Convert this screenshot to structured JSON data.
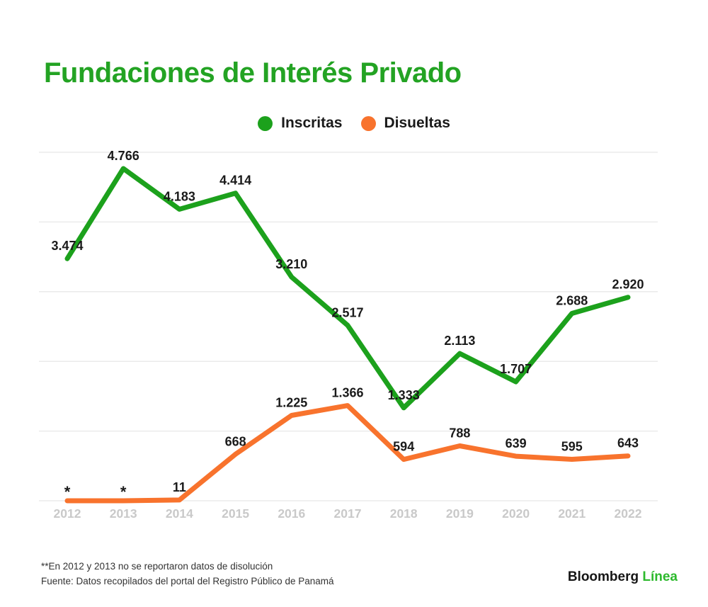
{
  "title": {
    "text": "Fundaciones de Interés Privado"
  },
  "colors": {
    "title_green": "#23A323",
    "inscritas_green": "#1CA11C",
    "disueltas_orange": "#F8732D",
    "grid": "#E8E8E8",
    "axis_labels": "#C9C9C9",
    "data_label_text": "#1A1A1A",
    "brand_green": "#2DB92D"
  },
  "legend": {
    "items": [
      {
        "label": "Inscritas",
        "color": "#1CA11C"
      },
      {
        "label": "Disueltas",
        "color": "#F8732D"
      }
    ]
  },
  "chart_data": {
    "type": "line",
    "x": [
      "2012",
      "2013",
      "2014",
      "2015",
      "2016",
      "2017",
      "2018",
      "2019",
      "2020",
      "2021",
      "2022"
    ],
    "series": [
      {
        "name": "Inscritas",
        "color": "#1CA11C",
        "values": [
          3474,
          4766,
          4183,
          4414,
          3210,
          2517,
          1333,
          2113,
          1707,
          2688,
          2920
        ],
        "labels": [
          "3.474",
          "4.766",
          "4.183",
          "4.414",
          "3.210",
          "2.517",
          "1.333",
          "2.113",
          "1.707",
          "2.688",
          "2.920"
        ]
      },
      {
        "name": "Disueltas",
        "color": "#F8732D",
        "values": [
          null,
          null,
          11,
          668,
          1225,
          1366,
          594,
          788,
          639,
          595,
          643
        ],
        "labels": [
          "*",
          "*",
          "11",
          "668",
          "1.225",
          "1.366",
          "594",
          "788",
          "639",
          "595",
          "643"
        ],
        "note": "null values plotted at zero, marked with asterisk"
      }
    ],
    "ylim": [
      0,
      5000
    ],
    "gridline_values": [
      0,
      1000,
      2000,
      3000,
      4000,
      5000
    ],
    "grid": true,
    "legend_position": "top-center",
    "xlabel": "",
    "ylabel": ""
  },
  "footnote": {
    "line1": "**En 2012 y 2013 no se reportaron datos de disolución",
    "line2": "Fuente: Datos recopilados del portal del Registro Público de Panamá"
  },
  "brand": {
    "word1": "Bloomberg",
    "word2": "Línea"
  }
}
